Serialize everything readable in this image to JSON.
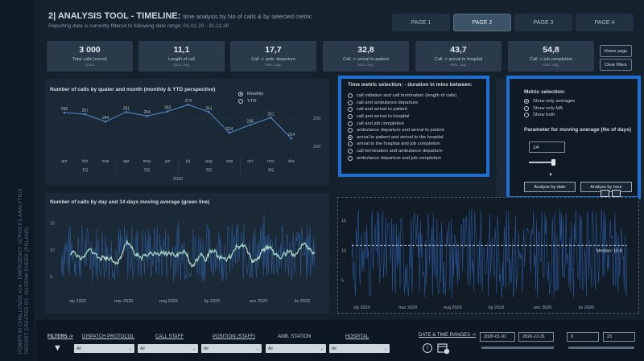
{
  "sidebar": {
    "text": [
      "POWER BI CHALLENGE #14 - EMERGENCY SERVICES ANALYTICS",
      "REPORT CREATED BY: GUSTAW DUDEK (POLAND)"
    ]
  },
  "header": {
    "title": "2| ANALYSIS TOOL - TIMELINE:",
    "title_sub": "time analysis by No of calls & by selected metric",
    "filter_info": "Reporting data is currently filtered to following date range: 01.01.20 - 31.12.20"
  },
  "tabs": [
    "PAGE 1",
    "PAGE 2",
    "PAGE 3",
    "PAGE 4"
  ],
  "kpis": [
    {
      "value": "3 000",
      "label": "Total calls (count)",
      "unit": "count"
    },
    {
      "value": "11,1",
      "label": "Length of call",
      "unit": "mins, avg."
    },
    {
      "value": "17,7",
      "label": "Call -> amb. departure",
      "unit": "mins, avg."
    },
    {
      "value": "32,8",
      "label": "Call -> arrival to patient",
      "unit": "mins, avg."
    },
    {
      "value": "43,7",
      "label": "Call -> arrival to hospital",
      "unit": "mins, avg."
    },
    {
      "value": "54,8",
      "label": "Call -> job completion",
      "unit": "mins, avg."
    }
  ],
  "buttons": {
    "home": "Home page",
    "clear": "Clear filters"
  },
  "chart1": {
    "title": "Number of calls by quater and month (monthly & YTD perspective)",
    "toggle": [
      "Monthly",
      "YTD"
    ],
    "right_ticks": [
      "250",
      "200"
    ],
    "quarters": [
      "1Q",
      "2Q",
      "3Q",
      "4Q"
    ],
    "year": "2020"
  },
  "chart2": {
    "title": "Number of calls by day and 14 days moving average (green line)",
    "yticks": [
      "15",
      "10",
      "5"
    ],
    "xticks": [
      "sty 2020",
      "mar 2020",
      "maj 2020",
      "lip 2020",
      "wrz 2020",
      "lis 2020"
    ]
  },
  "chart3": {
    "yticks": [
      "15",
      "10",
      "5"
    ],
    "xticks": [
      "sty 2020",
      "mar 2020",
      "maj 2020",
      "lip 2020",
      "wrz 2020",
      "lis 2020"
    ],
    "median_label": "Median: 10,8"
  },
  "chart_data": [
    {
      "type": "line",
      "title": "Number of calls by quater and month (monthly & YTD perspective)",
      "categories": [
        "jan",
        "feb",
        "mar",
        "apr",
        "may",
        "jun",
        "jul",
        "aug",
        "sep",
        "oct",
        "nov",
        "dec"
      ],
      "values": [
        260,
        257,
        244,
        261,
        254,
        262,
        274,
        261,
        224,
        238,
        251,
        214
      ],
      "xlabel": "2020",
      "ylim": [
        200,
        280
      ]
    },
    {
      "type": "line",
      "title": "Number of calls by day and 14 days moving average (green line)",
      "ylim": [
        2,
        17
      ]
    },
    {
      "type": "line",
      "ylim": [
        2,
        17
      ],
      "median": 10.8
    }
  ],
  "metric_panel": {
    "title": "Time metric selection: - duration in mins between:",
    "options": [
      "call initiation and call termination (length of calls)",
      "call and ambulance departure",
      "call and arrival to patient",
      "call and arrival to hospital",
      "call and job completion",
      "ambulance departure and arrival to patient",
      "arrival to patient and arrival to the hospital",
      "arrival to the hospital and job completion",
      "call termination and ambulance departure",
      "ambulance departure and job completion"
    ],
    "selected": 6
  },
  "metric_selection": {
    "title": "Metric selection:",
    "options": [
      "Show only averages",
      "Show only MA",
      "Show both"
    ],
    "selected": 0,
    "param_title": "Parameter for moving average (No of days)",
    "param_value": "14",
    "slider_fraction": 0.3,
    "btn_date": "Analyze by date",
    "btn_hour": "Analyze by hour"
  },
  "filters": {
    "label": "FILTERS ->",
    "items": [
      {
        "label": "DISPATCH PROTOCOL",
        "value": "All"
      },
      {
        "label": "CALL STAFF",
        "value": "All"
      },
      {
        "label": "POSITION (STAFF)",
        "value": "All"
      },
      {
        "label": "AMB. STATION",
        "value": "All"
      },
      {
        "label": "HOSPITAL",
        "value": "All"
      }
    ],
    "date_label": "DATE & TIME RANGES ->",
    "date_from": "2020-01-01",
    "date_to": "2020-12-31",
    "hour_from": "0",
    "hour_to": "23"
  },
  "colors": {
    "accent_blue": "#1f6fd1",
    "line_blue": "#4f86c6",
    "ma_green": "#a8d5c2",
    "bar_blue": "#2e5fa8"
  }
}
